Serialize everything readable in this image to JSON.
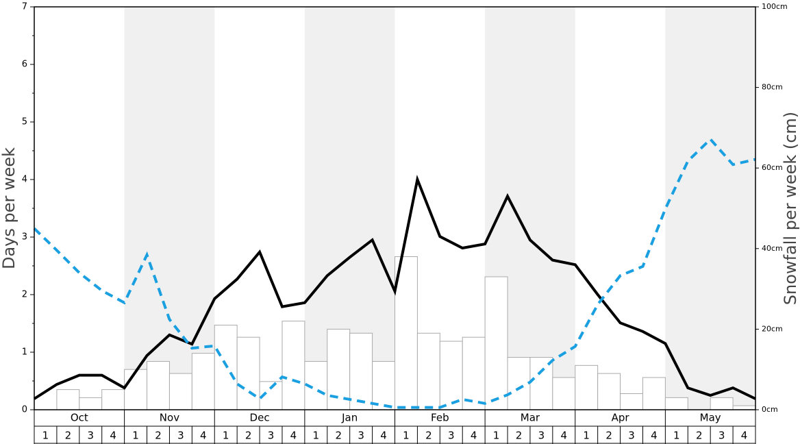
{
  "chart_data": {
    "type": "bar-line",
    "ylabel": "Days per week",
    "y2label": "Snowfall per week (cm)",
    "months": [
      "Oct",
      "Nov",
      "Dec",
      "Jan",
      "Feb",
      "Mar",
      "Apr",
      "May"
    ],
    "weeks": [
      "1",
      "2",
      "3",
      "4"
    ],
    "ylim": [
      0,
      7
    ],
    "yticks": [
      0,
      1,
      2,
      3,
      4,
      5,
      6,
      7
    ],
    "y2lim": [
      0,
      100
    ],
    "y2ticks": [
      {
        "value": 0,
        "label": "0cm"
      },
      {
        "value": 20,
        "label": "20cm"
      },
      {
        "value": 40,
        "label": "40cm"
      },
      {
        "value": 60,
        "label": "60cm"
      },
      {
        "value": 80,
        "label": "80cm"
      },
      {
        "value": 100,
        "label": "100cm"
      }
    ],
    "band_color": "#f0f0f0",
    "bars": {
      "axis": "y2",
      "color": "#ffffff",
      "edge": "#aaaaaa",
      "values": [
        0,
        5,
        3,
        5,
        10,
        12,
        9,
        14,
        21,
        18,
        7,
        22,
        12,
        20,
        19,
        12,
        38,
        19,
        17,
        18,
        33,
        13,
        13,
        8,
        11,
        9,
        4,
        8,
        3,
        0,
        3,
        1
      ]
    },
    "series": [
      {
        "color": "#000000",
        "dashed": false,
        "values": [
          0.19,
          0.44,
          0.6,
          0.6,
          0.38,
          0.94,
          1.3,
          1.14,
          1.93,
          2.27,
          2.74,
          1.79,
          1.86,
          2.33,
          2.65,
          2.95,
          2.06,
          4.0,
          3.01,
          2.81,
          2.88,
          3.71,
          2.95,
          2.6,
          2.52,
          2.0,
          1.51,
          1.36,
          1.15,
          0.38,
          0.25,
          0.38,
          0.19
        ]
      },
      {
        "color": "#1a9fe0",
        "dashed": true,
        "values": [
          3.15,
          2.77,
          2.38,
          2.07,
          1.86,
          2.69,
          1.57,
          1.07,
          1.11,
          0.45,
          0.19,
          0.57,
          0.45,
          0.25,
          0.18,
          0.11,
          0.04,
          0.04,
          0.04,
          0.18,
          0.11,
          0.26,
          0.48,
          0.86,
          1.1,
          1.83,
          2.33,
          2.49,
          3.49,
          4.32,
          4.7,
          4.26,
          4.35
        ]
      }
    ]
  }
}
